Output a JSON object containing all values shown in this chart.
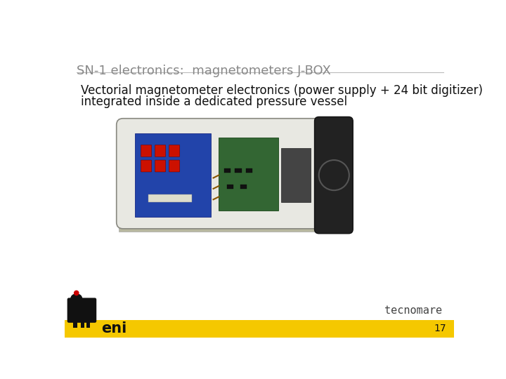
{
  "title": "SN-1 electronics:  magnetometers J-BOX",
  "body_line1": "Vectorial magnetometer electronics (power supply + 24 bit digitizer)",
  "body_line2": "integrated inside a dedicated pressure vessel",
  "slide_bg": "#ffffff",
  "title_color": "#888888",
  "body_color": "#111111",
  "footer_bar_color": "#F5C800",
  "footer_text": "eni",
  "footer_page": "17",
  "tecnomare_color": "#444444",
  "title_fontsize": 13,
  "body_fontsize": 12,
  "footer_fontsize": 15,
  "page_fontsize": 10
}
